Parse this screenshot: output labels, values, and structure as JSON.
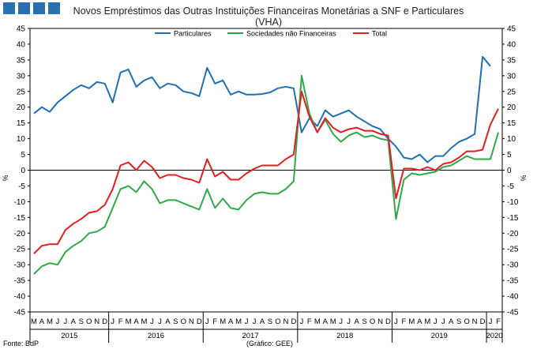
{
  "chart_data": {
    "type": "line",
    "title": "Novos Empréstimos das Outras Instituições Financeiras Monetárias a SNF e Particulares",
    "subtitle": "(VHA)",
    "ylabel_left": "%",
    "ylabel_right": "%",
    "ylim": [
      -45,
      45
    ],
    "yticks": [
      -45,
      -40,
      -35,
      -30,
      -25,
      -20,
      -15,
      -10,
      -5,
      0,
      5,
      10,
      15,
      20,
      25,
      30,
      35,
      40,
      45
    ],
    "legend_position": "top-center",
    "x": [
      "2015-03",
      "2015-04",
      "2015-05",
      "2015-06",
      "2015-07",
      "2015-08",
      "2015-09",
      "2015-10",
      "2015-11",
      "2015-12",
      "2016-01",
      "2016-02",
      "2016-03",
      "2016-04",
      "2016-05",
      "2016-06",
      "2016-07",
      "2016-08",
      "2016-09",
      "2016-10",
      "2016-11",
      "2016-12",
      "2017-01",
      "2017-02",
      "2017-03",
      "2017-04",
      "2017-05",
      "2017-06",
      "2017-07",
      "2017-08",
      "2017-09",
      "2017-10",
      "2017-11",
      "2017-12",
      "2018-01",
      "2018-02",
      "2018-03",
      "2018-04",
      "2018-05",
      "2018-06",
      "2018-07",
      "2018-08",
      "2018-09",
      "2018-10",
      "2018-11",
      "2018-12",
      "2019-01",
      "2019-02",
      "2019-03",
      "2019-04",
      "2019-05",
      "2019-06",
      "2019-07",
      "2019-08",
      "2019-09",
      "2019-10",
      "2019-11",
      "2019-12",
      "2020-01",
      "2020-02"
    ],
    "month_labels": [
      "M",
      "A",
      "M",
      "J",
      "J",
      "A",
      "S",
      "O",
      "N",
      "D",
      "J",
      "F",
      "M",
      "A",
      "M",
      "J",
      "J",
      "A",
      "S",
      "O",
      "N",
      "D",
      "J",
      "F",
      "M",
      "A",
      "M",
      "J",
      "J",
      "A",
      "S",
      "O",
      "N",
      "D",
      "J",
      "F",
      "M",
      "A",
      "M",
      "J",
      "J",
      "A",
      "S",
      "O",
      "N",
      "D",
      "J",
      "F",
      "M",
      "A",
      "M",
      "J",
      "J",
      "A",
      "S",
      "O",
      "N",
      "D",
      "J",
      "F"
    ],
    "years": [
      {
        "label": "2015",
        "start": 0,
        "end": 10
      },
      {
        "label": "2016",
        "start": 10,
        "end": 22
      },
      {
        "label": "2017",
        "start": 22,
        "end": 34
      },
      {
        "label": "2018",
        "start": 34,
        "end": 46
      },
      {
        "label": "2019",
        "start": 46,
        "end": 58
      },
      {
        "label": "2020",
        "start": 58,
        "end": 60
      }
    ],
    "series": [
      {
        "name": "Particulares",
        "color": "#1f6fb5",
        "values": [
          18,
          20,
          18.5,
          21.5,
          23.5,
          25.5,
          27,
          26,
          28,
          27.5,
          21.5,
          31,
          32,
          26.5,
          28.5,
          29.5,
          26,
          27.5,
          27,
          25,
          24.5,
          23.5,
          32.5,
          27.5,
          28.5,
          24,
          25,
          24,
          24,
          24.2,
          24.7,
          26,
          26.5,
          26,
          12,
          16.5,
          14,
          19,
          17,
          18,
          19,
          17,
          15.5,
          14,
          13,
          10,
          7.5,
          4,
          3.5,
          5,
          2.5,
          4.5,
          4.5,
          7,
          9,
          10,
          11.5,
          36,
          33,
          null
        ]
      },
      {
        "name": "Sociedades não Financeiras",
        "color": "#2eaa4a",
        "values": [
          -33,
          -30.5,
          -29.5,
          -30,
          -26,
          -24,
          -22.5,
          -20,
          -19.5,
          -18,
          -12,
          -6,
          -5,
          -7,
          -3.5,
          -6,
          -10.5,
          -9.5,
          -9.5,
          -10.5,
          -11.5,
          -12.5,
          -6,
          -12,
          -9,
          -12,
          -12.5,
          -9.5,
          -7.5,
          -7,
          -7.5,
          -7.5,
          -6,
          -3.5,
          30,
          18,
          12,
          16,
          11.5,
          9,
          11,
          12,
          10.5,
          11,
          10,
          9.5,
          -15.5,
          -3,
          -1,
          -1.5,
          -1,
          -0.5,
          1,
          1.5,
          3,
          4.5,
          3.5,
          3.5,
          3.5,
          12
        ]
      },
      {
        "name": "Total",
        "color": "#e41e1e",
        "values": [
          -26.5,
          -24,
          -23.5,
          -23.5,
          -19,
          -17,
          -15.5,
          -13.5,
          -13,
          -11,
          -6,
          1.5,
          2.5,
          0,
          3,
          1,
          -2.5,
          -1.5,
          -1.5,
          -2.5,
          -3,
          -4,
          3.5,
          -2,
          -0.5,
          -3,
          -3,
          -1,
          0.5,
          1.5,
          1.5,
          1.5,
          3.5,
          5,
          25,
          17,
          12,
          16.5,
          13.5,
          12,
          13,
          13.5,
          12.5,
          12.5,
          11.5,
          11,
          -9,
          0.5,
          0.5,
          0,
          1,
          0,
          2,
          2.5,
          4,
          6,
          6,
          6.5,
          14.5,
          19.5
        ]
      }
    ]
  },
  "footer": {
    "source": "Fonte: BdP",
    "credit": "(Gráfico: GEE)"
  }
}
